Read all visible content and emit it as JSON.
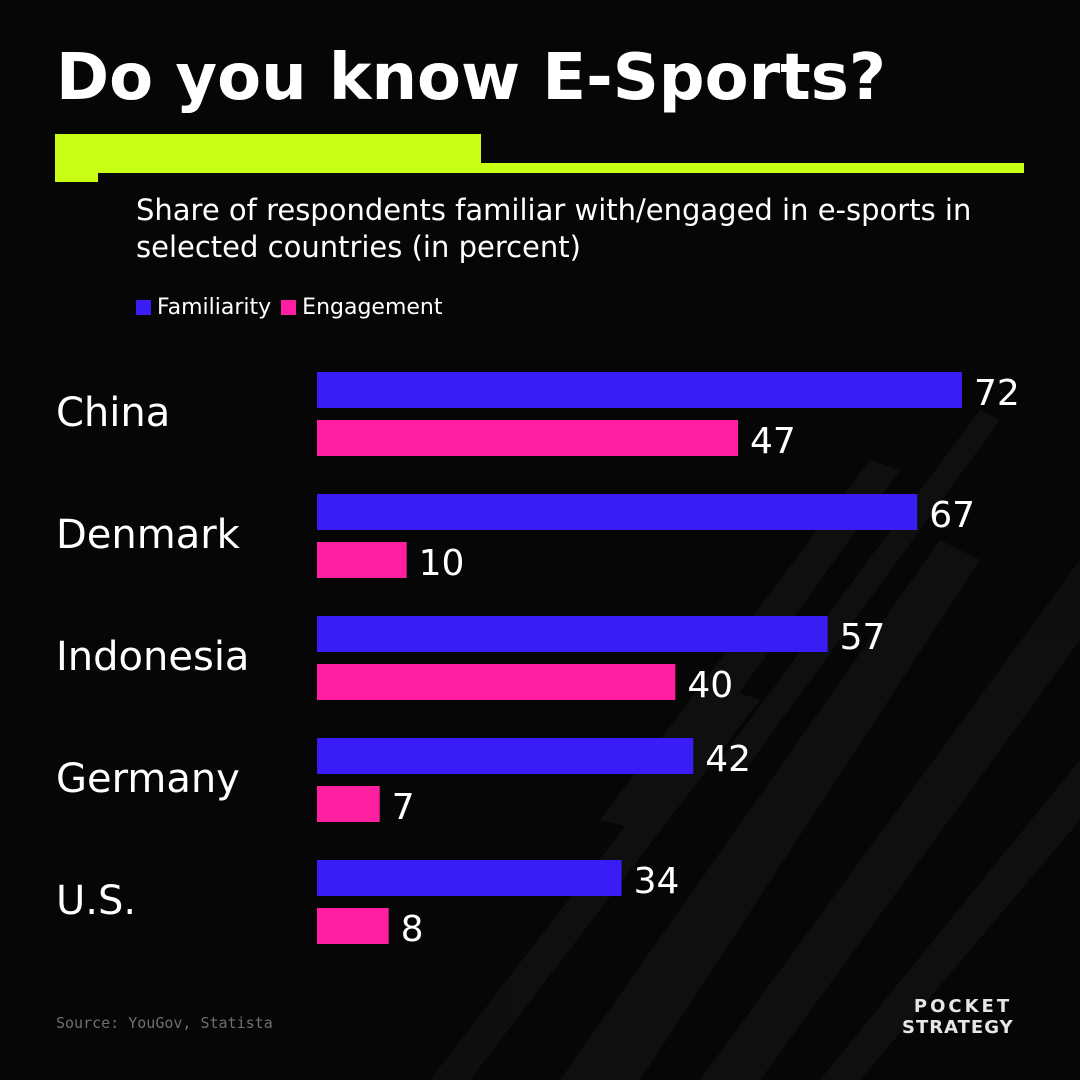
{
  "title": "Do you know E-Sports?",
  "subtitle": "Share of respondents familiar with/engaged in e-sports in selected countries (in percent)",
  "source": "Source: YouGov, Statista",
  "logo": {
    "line1": "POCKET",
    "line2": "STRATEGY"
  },
  "colors": {
    "background": "#060606",
    "accent": "#c8ff14",
    "familiarity": "#3a1cf5",
    "engagement": "#ff1fa0"
  },
  "chart_data": {
    "type": "bar",
    "orientation": "horizontal",
    "categories": [
      "China",
      "Denmark",
      "Indonesia",
      "Germany",
      "U.S."
    ],
    "series": [
      {
        "name": "Familiarity",
        "values": [
          72,
          67,
          57,
          42,
          34
        ]
      },
      {
        "name": "Engagement",
        "values": [
          47,
          10,
          40,
          7,
          8
        ]
      }
    ],
    "xlim": [
      0,
      72
    ],
    "grid": false,
    "legend_position": "top-left"
  }
}
